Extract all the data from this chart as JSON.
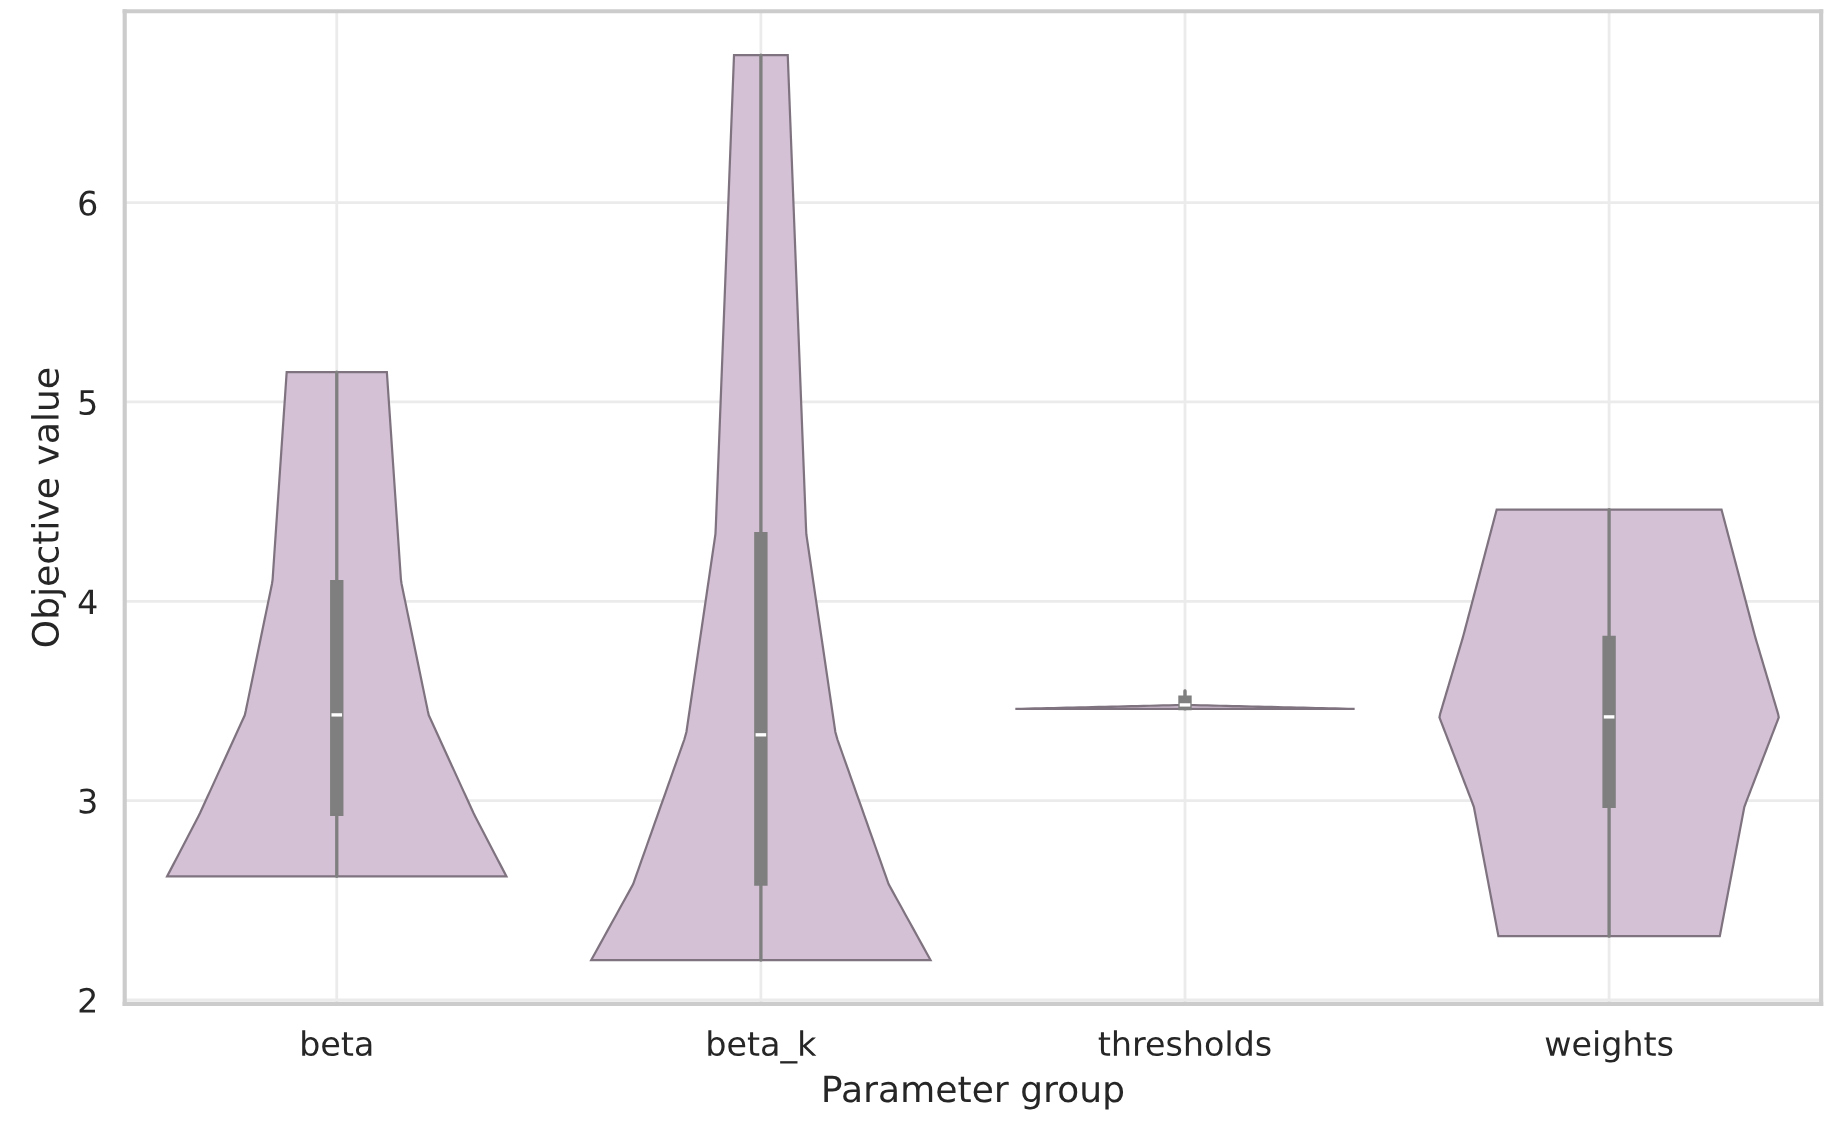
{
  "chart_data": {
    "type": "box",
    "xlabel": "Parameter group",
    "ylabel": "Objective value",
    "categories": [
      "beta",
      "beta_k",
      "thresholds",
      "weights"
    ],
    "boxes": [
      {
        "low": 2.62,
        "q1": 2.93,
        "median": 3.43,
        "q3": 4.1,
        "high": 5.15
      },
      {
        "low": 2.2,
        "q1": 2.58,
        "median": 3.33,
        "q3": 4.34,
        "high": 6.74
      },
      {
        "low": 3.46,
        "q1": 3.46,
        "median": 3.48,
        "q3": 3.52,
        "high": 3.55
      },
      {
        "low": 2.32,
        "q1": 2.97,
        "median": 3.42,
        "q3": 3.82,
        "high": 4.46
      }
    ],
    "color": "#7f7f7f",
    "ylim": [
      1.98,
      6.96
    ],
    "yticks": [
      2,
      3,
      4,
      5,
      6
    ],
    "grid": true
  }
}
